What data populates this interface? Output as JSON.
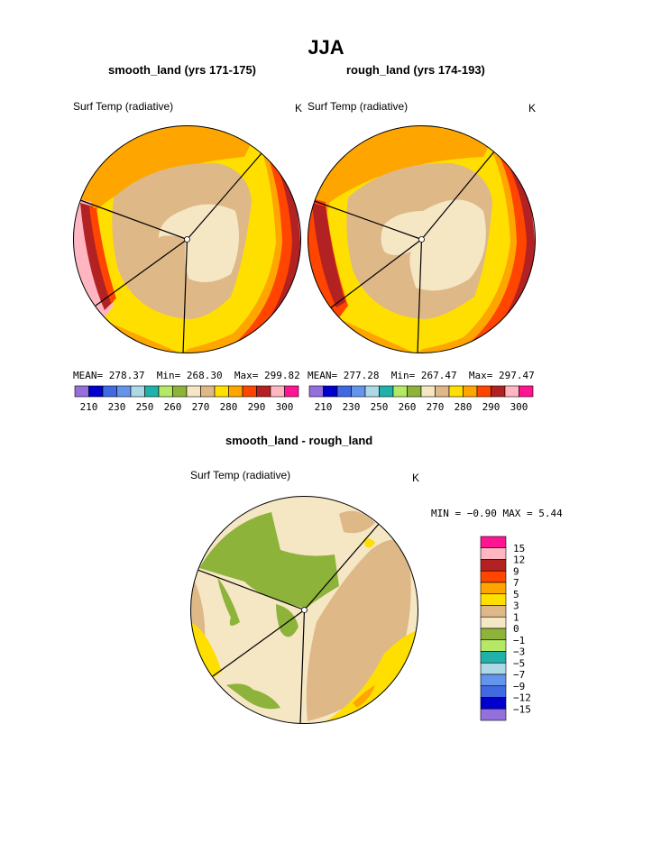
{
  "figure_title": "JJA",
  "colors": {
    "c210": "#9370db",
    "c220": "#0000cd",
    "c230": "#4169e1",
    "c240": "#6495ed",
    "c250": "#add8e6",
    "c255": "#20b2aa",
    "c260": "#b5e865",
    "c265": "#8db33a",
    "c270": "#f5e6c4",
    "c275": "#deb887",
    "c280": "#ffdf00",
    "c285": "#ffa500",
    "c290": "#ff4500",
    "c295": "#b22222",
    "c300": "#ffb6c1",
    "c305": "#ff1493",
    "line": "#000000"
  },
  "chart_data": [
    {
      "type": "heatmap",
      "name": "smooth_land",
      "title": "smooth_land (yrs 171-175)",
      "left_label": "Surf Temp (radiative)",
      "units": "K",
      "stats": {
        "mean_label": "MEAN=",
        "mean": "278.37",
        "min_label": "Min=",
        "min": "268.30",
        "max_label": "Max=",
        "max": "299.82"
      },
      "levels": [
        210,
        220,
        230,
        240,
        250,
        255,
        260,
        265,
        270,
        275,
        280,
        285,
        290,
        295,
        300,
        305
      ],
      "tick_labels": [
        "210",
        "230",
        "250",
        "260",
        "270",
        "280",
        "290",
        "300"
      ]
    },
    {
      "type": "heatmap",
      "name": "rough_land",
      "title": "rough_land (yrs 174-193)",
      "left_label": "Surf Temp (radiative)",
      "units": "K",
      "stats": {
        "mean_label": "MEAN=",
        "mean": "277.28",
        "min_label": "Min=",
        "min": "267.47",
        "max_label": "Max=",
        "max": "297.47"
      },
      "levels": [
        210,
        220,
        230,
        240,
        250,
        255,
        260,
        265,
        270,
        275,
        280,
        285,
        290,
        295,
        300,
        305
      ],
      "tick_labels": [
        "210",
        "230",
        "250",
        "260",
        "270",
        "280",
        "290",
        "300"
      ]
    },
    {
      "type": "heatmap",
      "name": "difference",
      "title": "smooth_land - rough_land",
      "left_label": "Surf Temp (radiative)",
      "units": "K",
      "stats_line": "MIN =  −0.90 MAX =   5.44",
      "levels": [
        15,
        12,
        9,
        7,
        5,
        3,
        1,
        0,
        -1,
        -3,
        -5,
        -7,
        -9,
        -12,
        -15
      ],
      "tick_labels": [
        "15",
        "12",
        "9",
        "7",
        "5",
        "3",
        "1",
        "0",
        "−1",
        "−3",
        "−5",
        "−7",
        "−9",
        "−12",
        "−15"
      ]
    }
  ]
}
